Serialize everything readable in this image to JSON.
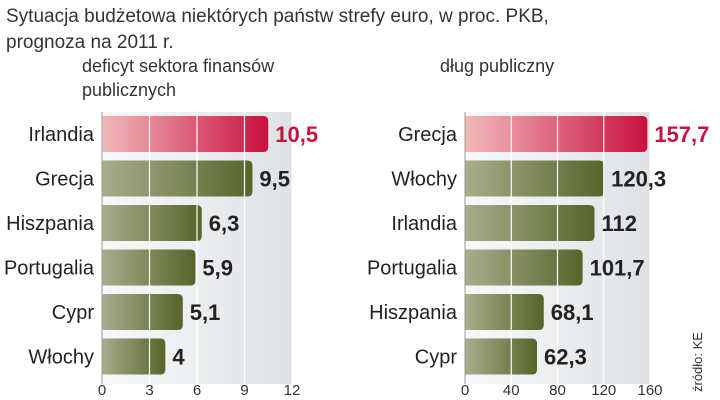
{
  "title_lines": [
    "Sytuacja budżetowa niektórych państw strefy euro, w proc. PKB,",
    "prognoza na 2011 r."
  ],
  "source": "źródło: KE",
  "colors": {
    "highlight": "#c8143c",
    "bar_dark": "#5b6a2a",
    "bar_light": "#a6aa86",
    "bar_highlight_dark": "#cc1441",
    "bar_highlight_light": "#f0b6b8",
    "label_dark": "#222222",
    "background_band": "#e6e8ea"
  },
  "chart_data": [
    {
      "type": "bar",
      "orientation": "horizontal",
      "title": "deficyt sektora finansów publicznych",
      "title_lines": [
        "deficyt sektora finansów",
        "publicznych"
      ],
      "categories": [
        "Irlandia",
        "Grecja",
        "Hiszpania",
        "Portugalia",
        "Cypr",
        "Włochy"
      ],
      "values": [
        10.5,
        9.5,
        6.3,
        5.9,
        5.1,
        4
      ],
      "value_labels": [
        "10,5",
        "9,5",
        "6,3",
        "5,9",
        "5,1",
        "4"
      ],
      "highlight_index": 0,
      "xlim": [
        0,
        12
      ],
      "ticks": [
        0,
        3,
        6,
        9,
        12
      ],
      "grid": true
    },
    {
      "type": "bar",
      "orientation": "horizontal",
      "title": "dług publiczny",
      "title_lines": [
        "dług publiczny"
      ],
      "categories": [
        "Grecja",
        "Włochy",
        "Irlandia",
        "Portugalia",
        "Hiszpania",
        "Cypr"
      ],
      "values": [
        157.7,
        120.3,
        112,
        101.7,
        68.1,
        62.3
      ],
      "value_labels": [
        "157,7",
        "120,3",
        "112",
        "101,7",
        "68,1",
        "62,3"
      ],
      "highlight_index": 0,
      "xlim": [
        0,
        160
      ],
      "ticks": [
        0,
        40,
        80,
        120,
        160
      ],
      "grid": true
    }
  ]
}
